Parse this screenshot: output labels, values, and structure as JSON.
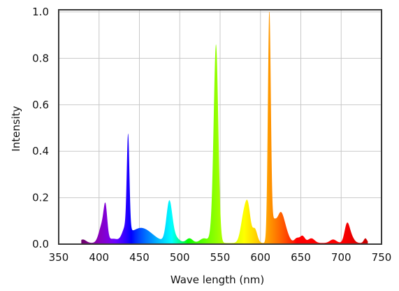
{
  "chart_data": {
    "type": "area",
    "xlabel": "Wave length (nm)",
    "ylabel": "Intensity",
    "xlim": [
      350,
      750
    ],
    "ylim": [
      0,
      1
    ],
    "x_ticks": [
      350,
      400,
      450,
      500,
      550,
      600,
      650,
      700,
      750
    ],
    "y_ticks": [
      0.0,
      0.2,
      0.4,
      0.6,
      0.8,
      1.0
    ],
    "y_tick_labels": [
      "0.0",
      "0.2",
      "0.4",
      "0.6",
      "0.8",
      "1.0"
    ],
    "grid": true,
    "legend": "none",
    "fill": "spectral rainbow (wavelength-colored)",
    "baseline": 0.005,
    "peaks": [
      {
        "x": 380,
        "y": 0.015,
        "w": 4
      },
      {
        "x": 404,
        "y": 0.08,
        "w": 4
      },
      {
        "x": 408,
        "y": 0.12,
        "w": 2.2
      },
      {
        "x": 417,
        "y": 0.015,
        "w": 5
      },
      {
        "x": 436,
        "y": 0.4,
        "w": 1.6
      },
      {
        "x": 433,
        "y": 0.05,
        "w": 4
      },
      {
        "x": 452,
        "y": 0.065,
        "w": 14
      },
      {
        "x": 487,
        "y": 0.16,
        "w": 3.5
      },
      {
        "x": 492,
        "y": 0.03,
        "w": 6
      },
      {
        "x": 512,
        "y": 0.02,
        "w": 4
      },
      {
        "x": 530,
        "y": 0.02,
        "w": 5
      },
      {
        "x": 545,
        "y": 0.83,
        "w": 2.8
      },
      {
        "x": 541,
        "y": 0.06,
        "w": 3
      },
      {
        "x": 580,
        "y": 0.13,
        "w": 4
      },
      {
        "x": 585,
        "y": 0.11,
        "w": 3
      },
      {
        "x": 593,
        "y": 0.06,
        "w": 3
      },
      {
        "x": 611,
        "y": 0.99,
        "w": 1.8
      },
      {
        "x": 616,
        "y": 0.07,
        "w": 3
      },
      {
        "x": 625,
        "y": 0.13,
        "w": 5
      },
      {
        "x": 633,
        "y": 0.02,
        "w": 4
      },
      {
        "x": 645,
        "y": 0.02,
        "w": 3
      },
      {
        "x": 652,
        "y": 0.03,
        "w": 3
      },
      {
        "x": 663,
        "y": 0.02,
        "w": 4
      },
      {
        "x": 690,
        "y": 0.015,
        "w": 4
      },
      {
        "x": 707,
        "y": 0.065,
        "w": 3
      },
      {
        "x": 711,
        "y": 0.035,
        "w": 4
      },
      {
        "x": 730,
        "y": 0.02,
        "w": 2
      }
    ],
    "coverage": [
      378,
      733
    ]
  }
}
